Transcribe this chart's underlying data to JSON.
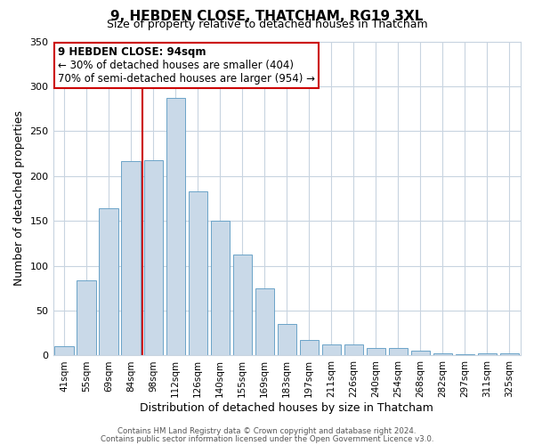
{
  "title": "9, HEBDEN CLOSE, THATCHAM, RG19 3XL",
  "subtitle": "Size of property relative to detached houses in Thatcham",
  "xlabel": "Distribution of detached houses by size in Thatcham",
  "ylabel": "Number of detached properties",
  "categories": [
    "41sqm",
    "55sqm",
    "69sqm",
    "84sqm",
    "98sqm",
    "112sqm",
    "126sqm",
    "140sqm",
    "155sqm",
    "169sqm",
    "183sqm",
    "197sqm",
    "211sqm",
    "226sqm",
    "240sqm",
    "254sqm",
    "268sqm",
    "282sqm",
    "297sqm",
    "311sqm",
    "325sqm"
  ],
  "values": [
    10,
    84,
    164,
    217,
    218,
    287,
    183,
    150,
    113,
    75,
    35,
    17,
    12,
    12,
    8,
    8,
    5,
    2,
    1,
    2,
    2
  ],
  "bar_color": "#c9d9e8",
  "bar_edge_color": "#6ba3c8",
  "vline_color": "#cc0000",
  "vline_pos": 3.5,
  "ylim": [
    0,
    350
  ],
  "yticks": [
    0,
    50,
    100,
    150,
    200,
    250,
    300,
    350
  ],
  "annotation_title": "9 HEBDEN CLOSE: 94sqm",
  "annotation_line1": "← 30% of detached houses are smaller (404)",
  "annotation_line2": "70% of semi-detached houses are larger (954) →",
  "annotation_box_color": "#ffffff",
  "annotation_box_edge": "#cc0000",
  "footer_line1": "Contains HM Land Registry data © Crown copyright and database right 2024.",
  "footer_line2": "Contains public sector information licensed under the Open Government Licence v3.0.",
  "bg_color": "#ffffff",
  "grid_color": "#c8d4e0",
  "title_fontsize": 11,
  "subtitle_fontsize": 9,
  "ylabel_fontsize": 9,
  "xlabel_fontsize": 9,
  "tick_fontsize": 8,
  "xtick_fontsize": 7.5,
  "annotation_fontsize": 8.5,
  "footer_fontsize": 6.2
}
